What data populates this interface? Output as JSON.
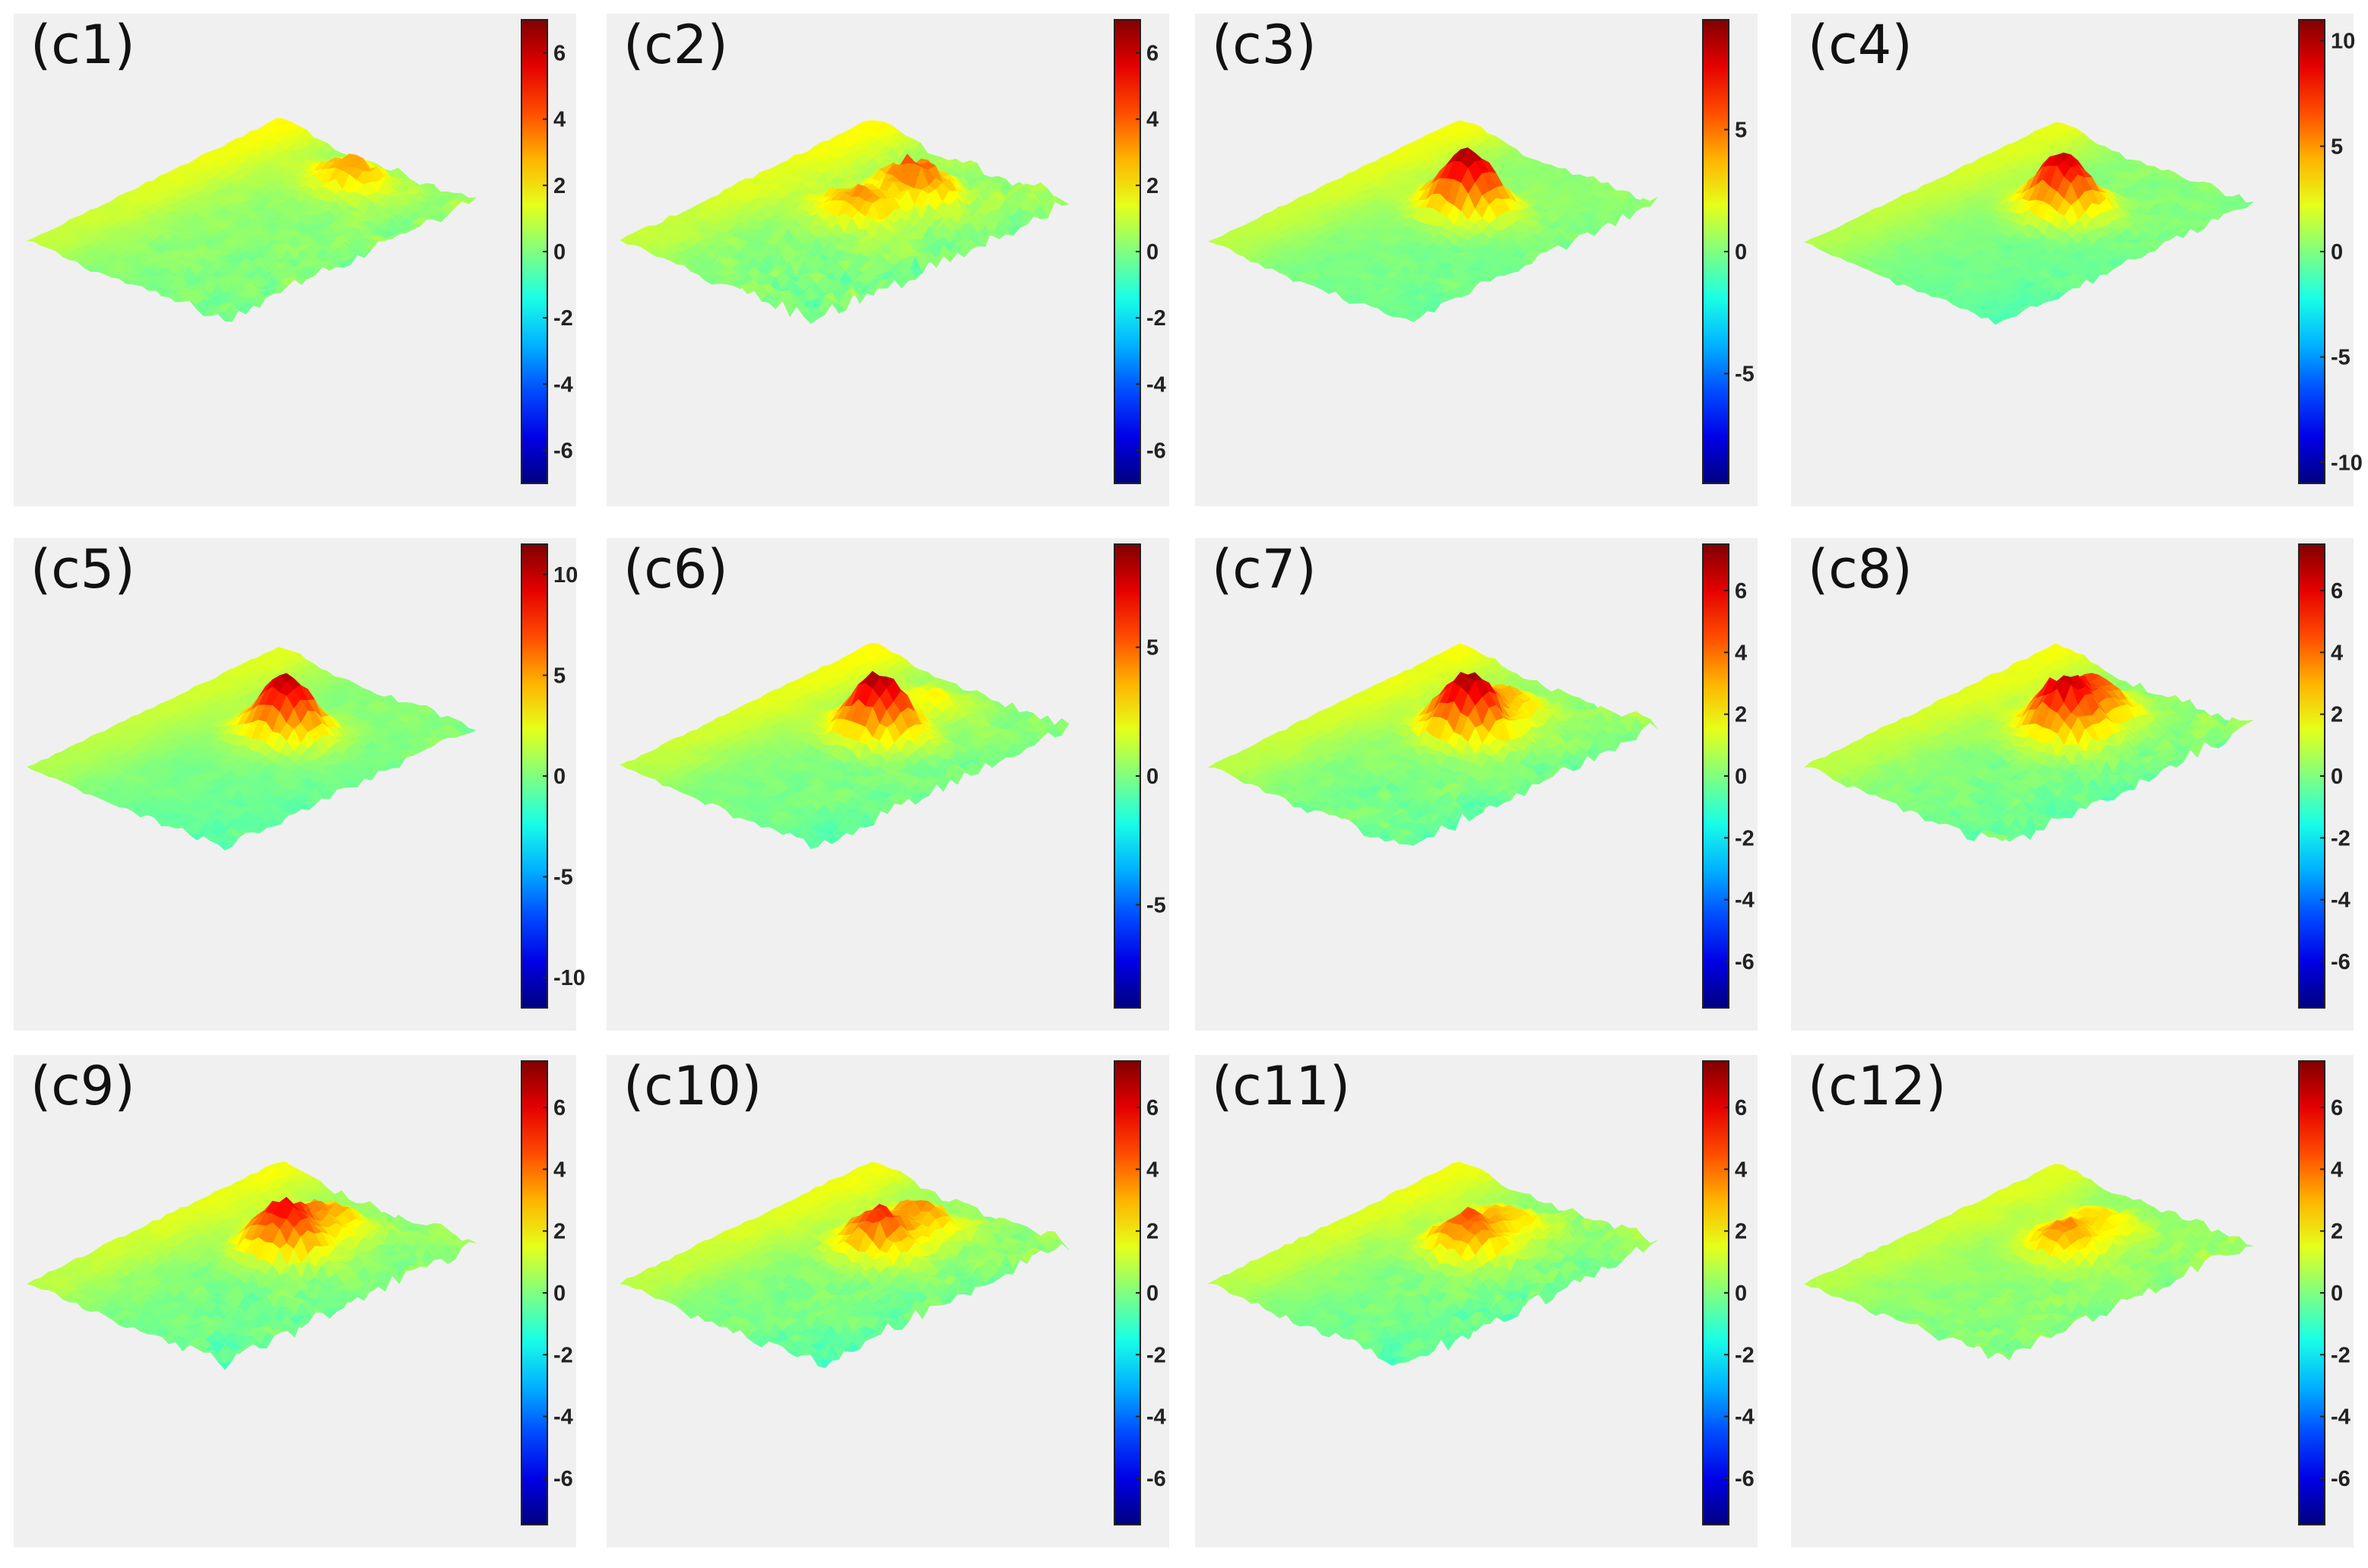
{
  "figure": {
    "title": ""
  },
  "colors": {
    "panel_background": "#f0f0f0",
    "colormap": "jet"
  },
  "chart_data": [
    {
      "type": "surface",
      "label": "(c1)",
      "colorbar": {
        "min": -7,
        "max": 7,
        "ticks": [
          6,
          4,
          2,
          0,
          -2,
          -4,
          -6
        ]
      },
      "surface": {
        "peak_height": 0,
        "noise": 0.9,
        "ridge": 1.5,
        "secondary_peaks": [
          {
            "u": 0.85,
            "v": 0.55,
            "height": 3
          }
        ],
        "left_tilt": 0.5
      }
    },
    {
      "type": "surface",
      "label": "(c2)",
      "colorbar": {
        "min": -7,
        "max": 7,
        "ticks": [
          6,
          4,
          2,
          0,
          -2,
          -4,
          -6
        ]
      },
      "surface": {
        "peak_height": 0,
        "noise": 1.4,
        "ridge": 1.5,
        "secondary_peaks": [
          {
            "u": 0.55,
            "v": 0.5,
            "height": 3
          },
          {
            "u": 0.75,
            "v": 0.55,
            "height": 4
          }
        ],
        "left_tilt": 0.6
      }
    },
    {
      "type": "surface",
      "label": "(c3)",
      "colorbar": {
        "min": -9.5,
        "max": 9.5,
        "ticks": [
          5,
          0,
          -5
        ]
      },
      "surface": {
        "peak_height": 9,
        "noise": 1.0,
        "ridge": 2,
        "secondary_peaks": [],
        "left_tilt": 1
      }
    },
    {
      "type": "surface",
      "label": "(c4)",
      "colorbar": {
        "min": -11,
        "max": 11,
        "ticks": [
          10,
          5,
          0,
          -5,
          -10
        ]
      },
      "surface": {
        "peak_height": 9.5,
        "noise": 1.1,
        "ridge": 2,
        "secondary_peaks": [],
        "left_tilt": 1.5
      }
    },
    {
      "type": "surface",
      "label": "(c5)",
      "colorbar": {
        "min": -11.5,
        "max": 11.5,
        "ticks": [
          10,
          5,
          0,
          -5,
          -10
        ]
      },
      "surface": {
        "peak_height": 10.5,
        "noise": 1.1,
        "ridge": 2,
        "secondary_peaks": [],
        "left_tilt": 1.5
      }
    },
    {
      "type": "surface",
      "label": "(c6)",
      "colorbar": {
        "min": -9,
        "max": 9,
        "ticks": [
          5,
          0,
          -5
        ]
      },
      "surface": {
        "peak_height": 8.5,
        "noise": 1.1,
        "ridge": 2,
        "secondary_peaks": [
          {
            "u": 0.85,
            "v": 0.5,
            "height": 2
          }
        ],
        "left_tilt": 1
      }
    },
    {
      "type": "surface",
      "label": "(c7)",
      "colorbar": {
        "min": -7.5,
        "max": 7.5,
        "ticks": [
          6,
          4,
          2,
          0,
          -2,
          -4,
          -6
        ]
      },
      "surface": {
        "peak_height": 7,
        "noise": 1.1,
        "ridge": 1.5,
        "secondary_peaks": [
          {
            "u": 0.8,
            "v": 0.5,
            "height": 2.5
          }
        ],
        "left_tilt": 1
      }
    },
    {
      "type": "surface",
      "label": "(c8)",
      "colorbar": {
        "min": -7.5,
        "max": 7.5,
        "ticks": [
          6,
          4,
          2,
          0,
          -2,
          -4,
          -6
        ]
      },
      "surface": {
        "peak_height": 6.5,
        "noise": 1.1,
        "ridge": 1.5,
        "secondary_peaks": [
          {
            "u": 0.78,
            "v": 0.48,
            "height": 4
          }
        ],
        "left_tilt": 1
      }
    },
    {
      "type": "surface",
      "label": "(c9)",
      "colorbar": {
        "min": -7.5,
        "max": 7.5,
        "ticks": [
          6,
          4,
          2,
          0,
          -2,
          -4,
          -6
        ]
      },
      "surface": {
        "peak_height": 6,
        "noise": 1.2,
        "ridge": 1.5,
        "secondary_peaks": [
          {
            "u": 0.8,
            "v": 0.5,
            "height": 3
          }
        ],
        "left_tilt": 1
      }
    },
    {
      "type": "surface",
      "label": "(c10)",
      "colorbar": {
        "min": -7.5,
        "max": 7.5,
        "ticks": [
          6,
          4,
          2,
          0,
          -2,
          -4,
          -6
        ]
      },
      "surface": {
        "peak_height": 5,
        "noise": 1.2,
        "ridge": 1.5,
        "secondary_peaks": [
          {
            "u": 0.8,
            "v": 0.5,
            "height": 3
          }
        ],
        "left_tilt": 1
      }
    },
    {
      "type": "surface",
      "label": "(c11)",
      "colorbar": {
        "min": -7.5,
        "max": 7.5,
        "ticks": [
          6,
          4,
          2,
          0,
          -2,
          -4,
          -6
        ]
      },
      "surface": {
        "peak_height": 4.5,
        "noise": 1.2,
        "ridge": 1.5,
        "secondary_peaks": [
          {
            "u": 0.8,
            "v": 0.5,
            "height": 2.5
          }
        ],
        "left_tilt": 1
      }
    },
    {
      "type": "surface",
      "label": "(c12)",
      "colorbar": {
        "min": -7.5,
        "max": 7.5,
        "ticks": [
          6,
          4,
          2,
          0,
          -2,
          -4,
          -6
        ]
      },
      "surface": {
        "peak_height": 3.5,
        "noise": 1.0,
        "ridge": 1.2,
        "secondary_peaks": [
          {
            "u": 0.8,
            "v": 0.5,
            "height": 2
          }
        ],
        "left_tilt": 0.3
      }
    }
  ]
}
